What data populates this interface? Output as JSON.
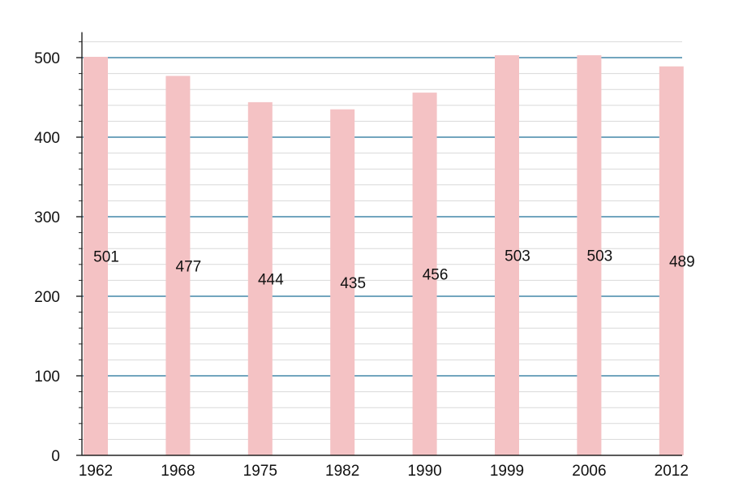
{
  "chart_data": {
    "type": "bar",
    "categories": [
      "1962",
      "1968",
      "1975",
      "1982",
      "1990",
      "1999",
      "2006",
      "2012"
    ],
    "values": [
      501,
      477,
      444,
      435,
      456,
      503,
      503,
      489
    ],
    "value_labels": [
      "501",
      "477",
      "444",
      "435",
      "456",
      "503",
      "503",
      "489"
    ],
    "y_ticks": [
      "0",
      "100",
      "200",
      "300",
      "400",
      "500"
    ],
    "ylim": [
      0,
      530
    ],
    "title": "",
    "xlabel": "",
    "ylabel": "",
    "grid": true,
    "legend": "none",
    "colors": {
      "bar": "#f4c2c4",
      "major_grid": "#1f6f98",
      "minor_grid": "#d9d9d9",
      "axis": "#222222"
    }
  }
}
